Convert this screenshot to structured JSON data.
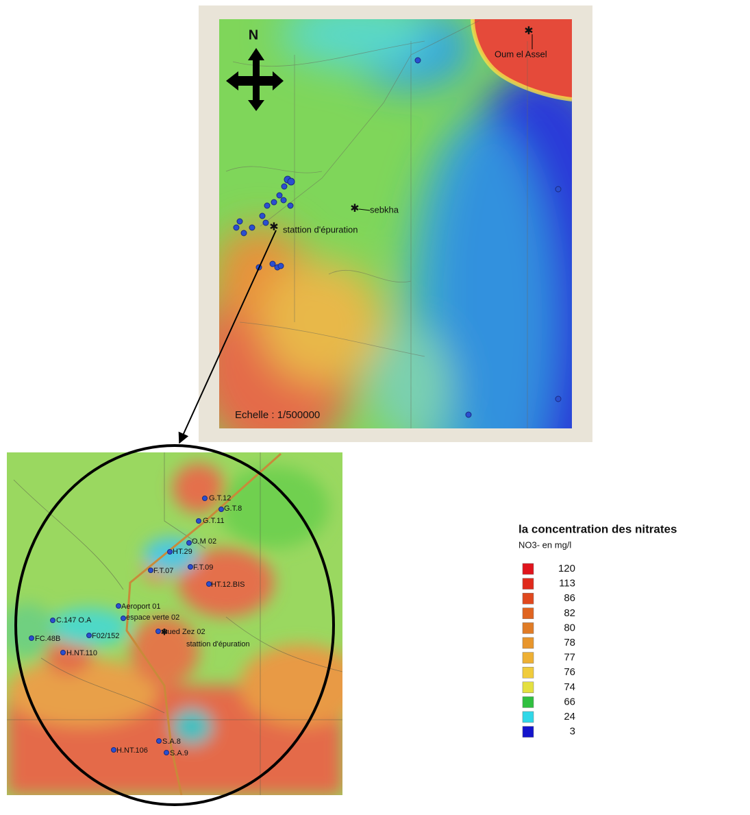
{
  "map": {
    "north": "N",
    "scale": "Echelle : 1/500000",
    "places": [
      "Oum el Assel",
      "sebkha",
      "stattion d'épuration"
    ]
  },
  "inset": {
    "labels": [
      "G.T.12",
      "G.T.8",
      "G.T.11",
      "O.M 02",
      "HT.29",
      "F.T.07",
      "F.T.09",
      "HT.12.BIS",
      "Aeroport 01",
      "C.147 O.A",
      "espace verte 02",
      "FC.48B",
      "F02/152",
      "Oued Zez 02",
      "stattion d'épuration",
      "H.NT.110",
      "S.A.8",
      "H.NT.106",
      "S.A.9"
    ]
  },
  "legend": {
    "title": "la concentration des nitrates",
    "subtitle": "NO3-  en mg/l",
    "items": [
      {
        "value": 120,
        "color": "#e0141c"
      },
      {
        "value": 113,
        "color": "#e02a1c"
      },
      {
        "value": 86,
        "color": "#e0481e"
      },
      {
        "value": 82,
        "color": "#e06420"
      },
      {
        "value": 80,
        "color": "#e07c26"
      },
      {
        "value": 78,
        "color": "#e8962c"
      },
      {
        "value": 77,
        "color": "#eeb034"
      },
      {
        "value": 76,
        "color": "#f0cc3c"
      },
      {
        "value": 74,
        "color": "#e4e040"
      },
      {
        "value": 66,
        "color": "#30c040"
      },
      {
        "value": 24,
        "color": "#30d8e8"
      },
      {
        "value": 3,
        "color": "#1414cc"
      }
    ]
  }
}
